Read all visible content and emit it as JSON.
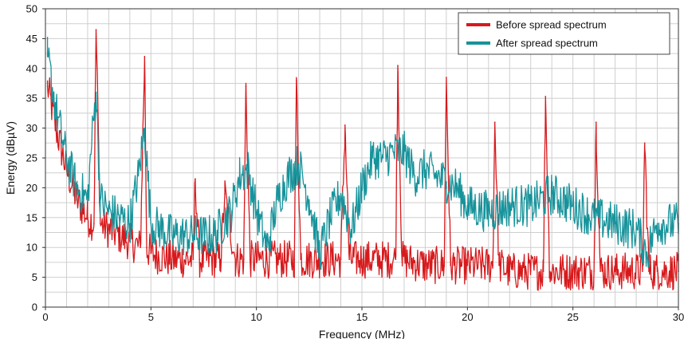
{
  "chart_data": {
    "type": "line",
    "title": "",
    "xlabel": "Frequency (MHz)",
    "ylabel": "Energy (dBµV)",
    "xlim": [
      0,
      30
    ],
    "ylim": [
      0,
      50
    ],
    "x_ticks": [
      0,
      5,
      10,
      15,
      20,
      25,
      30
    ],
    "y_ticks": [
      0,
      5,
      10,
      15,
      20,
      25,
      30,
      35,
      40,
      45,
      50
    ],
    "grid": true,
    "legend_position": "top-right",
    "series": [
      {
        "name": "Before spread spectrum",
        "color": "#d7191c",
        "x": [
          0.1,
          0.5,
          1.0,
          1.5,
          2.0,
          2.3,
          2.4,
          2.6,
          3.0,
          3.5,
          4.0,
          4.5,
          4.7,
          4.8,
          5.0,
          6.0,
          7.0,
          7.1,
          7.3,
          8.0,
          8.3,
          8.5,
          9.0,
          9.4,
          9.5,
          9.7,
          10.0,
          11.0,
          11.8,
          11.9,
          12.1,
          13.0,
          14.0,
          14.2,
          14.4,
          15.0,
          16.0,
          16.6,
          16.7,
          16.9,
          18.0,
          18.9,
          19.0,
          19.2,
          20.0,
          21.2,
          21.3,
          21.5,
          22.0,
          23.0,
          23.6,
          23.7,
          23.9,
          25.0,
          26.0,
          26.1,
          26.3,
          27.0,
          28.3,
          28.4,
          28.6,
          29.0,
          30.0
        ],
        "y": [
          37,
          30,
          23,
          18,
          15,
          14,
          46.5,
          14,
          13,
          12,
          11,
          10,
          42,
          10,
          9,
          8,
          8,
          21.5,
          8,
          8,
          8,
          19,
          8,
          8,
          37,
          8,
          8,
          8,
          8,
          38,
          8,
          8,
          8,
          30.5,
          8,
          8,
          8,
          8,
          40.5,
          8,
          7,
          7,
          38.5,
          7,
          7,
          7,
          31,
          7,
          6,
          6,
          6,
          35.3,
          6,
          6,
          6,
          31,
          6,
          6,
          6,
          27.5,
          6,
          6,
          6
        ]
      },
      {
        "name": "After spread spectrum",
        "color": "#17939b",
        "x": [
          0.1,
          0.5,
          1.0,
          1.5,
          2.0,
          2.2,
          2.4,
          2.6,
          3.0,
          3.5,
          4.0,
          4.4,
          4.7,
          5.0,
          5.5,
          6.0,
          7.0,
          8.0,
          8.8,
          9.2,
          9.6,
          10.0,
          10.5,
          11.0,
          11.5,
          12.0,
          12.5,
          13.0,
          13.5,
          14.0,
          14.5,
          15.0,
          15.5,
          16.0,
          16.5,
          17.0,
          17.5,
          18.0,
          18.5,
          19.0,
          19.5,
          20.0,
          21.0,
          22.0,
          23.0,
          24.0,
          25.0,
          26.0,
          27.0,
          28.0,
          28.5,
          29.0,
          30.0
        ],
        "y": [
          42,
          33,
          25,
          20,
          18,
          28,
          36,
          18,
          16,
          15,
          14,
          22,
          30,
          14,
          13,
          12,
          12,
          12,
          16,
          22,
          23,
          16,
          10,
          18,
          22,
          24,
          18,
          9,
          15,
          19,
          13,
          20,
          25,
          25,
          26,
          26,
          22,
          23,
          22,
          21,
          20,
          17,
          16,
          17,
          17,
          19,
          17,
          15,
          14,
          13,
          9,
          14,
          14
        ]
      }
    ]
  }
}
